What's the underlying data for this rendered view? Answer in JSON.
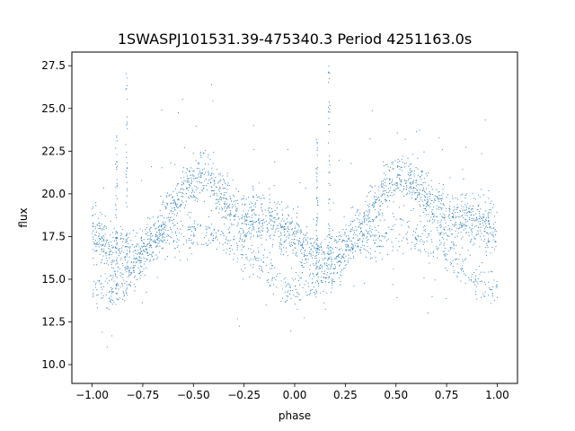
{
  "chart_data": {
    "type": "scatter",
    "title": "1SWASPJ101531.39-475340.3 Period 4251163.0s",
    "xlabel": "phase",
    "ylabel": "flux",
    "xlim": [
      -1.1,
      1.1
    ],
    "ylim": [
      8.9,
      28.3
    ],
    "xticks": [
      -1.0,
      -0.75,
      -0.5,
      -0.25,
      0.0,
      0.25,
      0.5,
      0.75,
      1.0
    ],
    "xtick_labels": [
      "−1.00",
      "−0.75",
      "−0.50",
      "−0.25",
      "0.00",
      "0.25",
      "0.50",
      "0.75",
      "1.00"
    ],
    "yticks": [
      10.0,
      12.5,
      15.0,
      17.5,
      20.0,
      22.5,
      25.0,
      27.5
    ],
    "ytick_labels": [
      "10.0",
      "12.5",
      "15.0",
      "17.5",
      "20.0",
      "22.5",
      "25.0",
      "27.5"
    ],
    "grid": false,
    "marker_color": "#1f77b4",
    "series_profile": {
      "description_points_phase": [
        -1.0,
        -0.95,
        -0.9,
        -0.85,
        -0.8,
        -0.75,
        -0.7,
        -0.65,
        -0.6,
        -0.55,
        -0.5,
        -0.45,
        -0.4,
        -0.35,
        -0.3,
        -0.25,
        -0.2,
        -0.15,
        -0.1,
        -0.05,
        0.0,
        0.05,
        0.1,
        0.15,
        0.2,
        0.25,
        0.3,
        0.35,
        0.4,
        0.45,
        0.5,
        0.55,
        0.6,
        0.65,
        0.7,
        0.75,
        0.8,
        0.85,
        0.9,
        0.95,
        1.0
      ],
      "flux_center": [
        18.0,
        17.4,
        16.6,
        16.3,
        16.2,
        16.8,
        17.5,
        18.3,
        19.3,
        20.2,
        20.8,
        21.0,
        20.6,
        19.8,
        19.0,
        18.7,
        18.6,
        18.5,
        18.4,
        17.9,
        17.4,
        16.8,
        16.4,
        16.2,
        16.3,
        16.9,
        17.6,
        18.4,
        19.4,
        20.3,
        20.8,
        21.0,
        20.5,
        19.8,
        19.1,
        18.8,
        18.6,
        18.5,
        18.4,
        18.2,
        18.0
      ],
      "flux_low_branch": [
        14.5,
        14.4,
        14.3,
        14.6,
        15.2,
        16.2,
        17.0,
        17.1,
        17.2,
        17.3,
        17.6,
        17.8,
        17.5,
        17.3,
        17.0,
        16.6,
        16.2,
        15.6,
        15.0,
        14.5,
        14.4,
        14.4,
        14.6,
        15.0,
        15.5,
        16.5,
        17.0,
        17.1,
        17.2,
        17.3,
        17.6,
        17.8,
        17.5,
        17.3,
        17.0,
        16.6,
        16.2,
        15.6,
        15.0,
        14.6,
        14.5
      ]
    }
  }
}
